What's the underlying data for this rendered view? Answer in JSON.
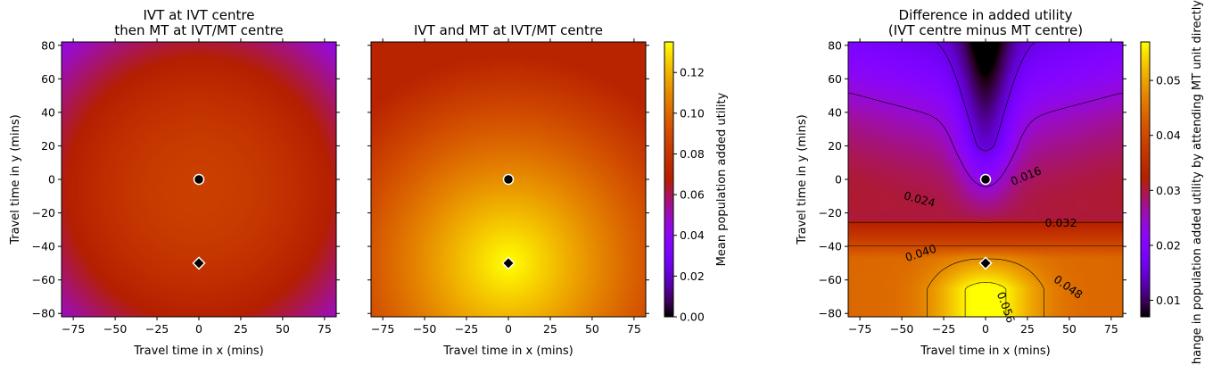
{
  "chart_data": [
    {
      "type": "heatmap",
      "title_lines": [
        "IVT at IVT centre",
        "then MT at IVT/MT centre"
      ],
      "xlabel": "Travel time in x (mins)",
      "ylabel": "Travel time in y (mins)",
      "xlim": [
        -82,
        82
      ],
      "ylim": [
        -82,
        82
      ],
      "xticks": [
        -75,
        -50,
        -25,
        0,
        25,
        50,
        75
      ],
      "yticks": [
        -80,
        -60,
        -40,
        -20,
        0,
        20,
        40,
        60,
        80
      ],
      "colormap": "gnuplot",
      "vmin": 0.0,
      "vmax": 0.135,
      "markers": [
        {
          "shape": "circle",
          "x": 0,
          "y": 0
        },
        {
          "shape": "diamond",
          "x": 0,
          "y": -50
        }
      ],
      "field": {
        "model": "radial",
        "centre": [
          0,
          -6
        ],
        "peak": 0.085,
        "edge": 0.045,
        "scale": 118,
        "power": 2.0
      }
    },
    {
      "type": "heatmap",
      "title_lines": [
        "IVT and MT at IVT/MT centre"
      ],
      "xlabel": "Travel time in x (mins)",
      "ylabel": "",
      "xlim": [
        -82,
        82
      ],
      "ylim": [
        -82,
        82
      ],
      "xticks": [
        -75,
        -50,
        -25,
        0,
        25,
        50,
        75
      ],
      "yticks": [
        -80,
        -60,
        -40,
        -20,
        0,
        20,
        40,
        60,
        80
      ],
      "show_ytick_labels": false,
      "colormap": "gnuplot",
      "vmin": 0.0,
      "vmax": 0.135,
      "markers": [
        {
          "shape": "circle",
          "x": 0,
          "y": 0
        },
        {
          "shape": "diamond",
          "x": 0,
          "y": -50
        }
      ],
      "field": {
        "model": "radial",
        "centre": [
          0,
          -50
        ],
        "peak": 0.135,
        "edge": 0.07,
        "scale": 125,
        "power": 1.1
      },
      "colorbar": {
        "label": "Mean population added utility",
        "ticks": [
          0.0,
          0.02,
          0.04,
          0.06,
          0.08,
          0.1,
          0.12
        ],
        "tick_labels": [
          "0.00",
          "0.02",
          "0.04",
          "0.06",
          "0.08",
          "0.10",
          "0.12"
        ]
      }
    },
    {
      "type": "heatmap",
      "title_lines": [
        "Difference in added utility",
        "(IVT centre minus MT centre)"
      ],
      "xlabel": "Travel time in x (mins)",
      "ylabel": "Travel time in y (mins)",
      "xlim": [
        -82,
        82
      ],
      "ylim": [
        -82,
        82
      ],
      "xticks": [
        -75,
        -50,
        -25,
        0,
        25,
        50,
        75
      ],
      "yticks": [
        -80,
        -60,
        -40,
        -20,
        0,
        20,
        40,
        60,
        80
      ],
      "colormap": "gnuplot",
      "vmin": 0.007,
      "vmax": 0.057,
      "markers": [
        {
          "shape": "circle",
          "x": 0,
          "y": 0
        },
        {
          "shape": "diamond",
          "x": 0,
          "y": -50
        }
      ],
      "field": {
        "model": "difference"
      },
      "contours": [
        {
          "level": 0.016,
          "label": "0.016"
        },
        {
          "level": 0.024,
          "label": "0.024"
        },
        {
          "level": 0.032,
          "label": "0.032"
        },
        {
          "level": 0.04,
          "label": "0.040"
        },
        {
          "level": 0.048,
          "label": "0.048"
        },
        {
          "level": 0.056,
          "label": "0.056"
        }
      ],
      "colorbar": {
        "label": "Change in population added utility by attending MT unit directly",
        "ticks": [
          0.01,
          0.02,
          0.03,
          0.04,
          0.05
        ],
        "tick_labels": [
          "0.01",
          "0.02",
          "0.03",
          "0.04",
          "0.05"
        ]
      }
    }
  ]
}
